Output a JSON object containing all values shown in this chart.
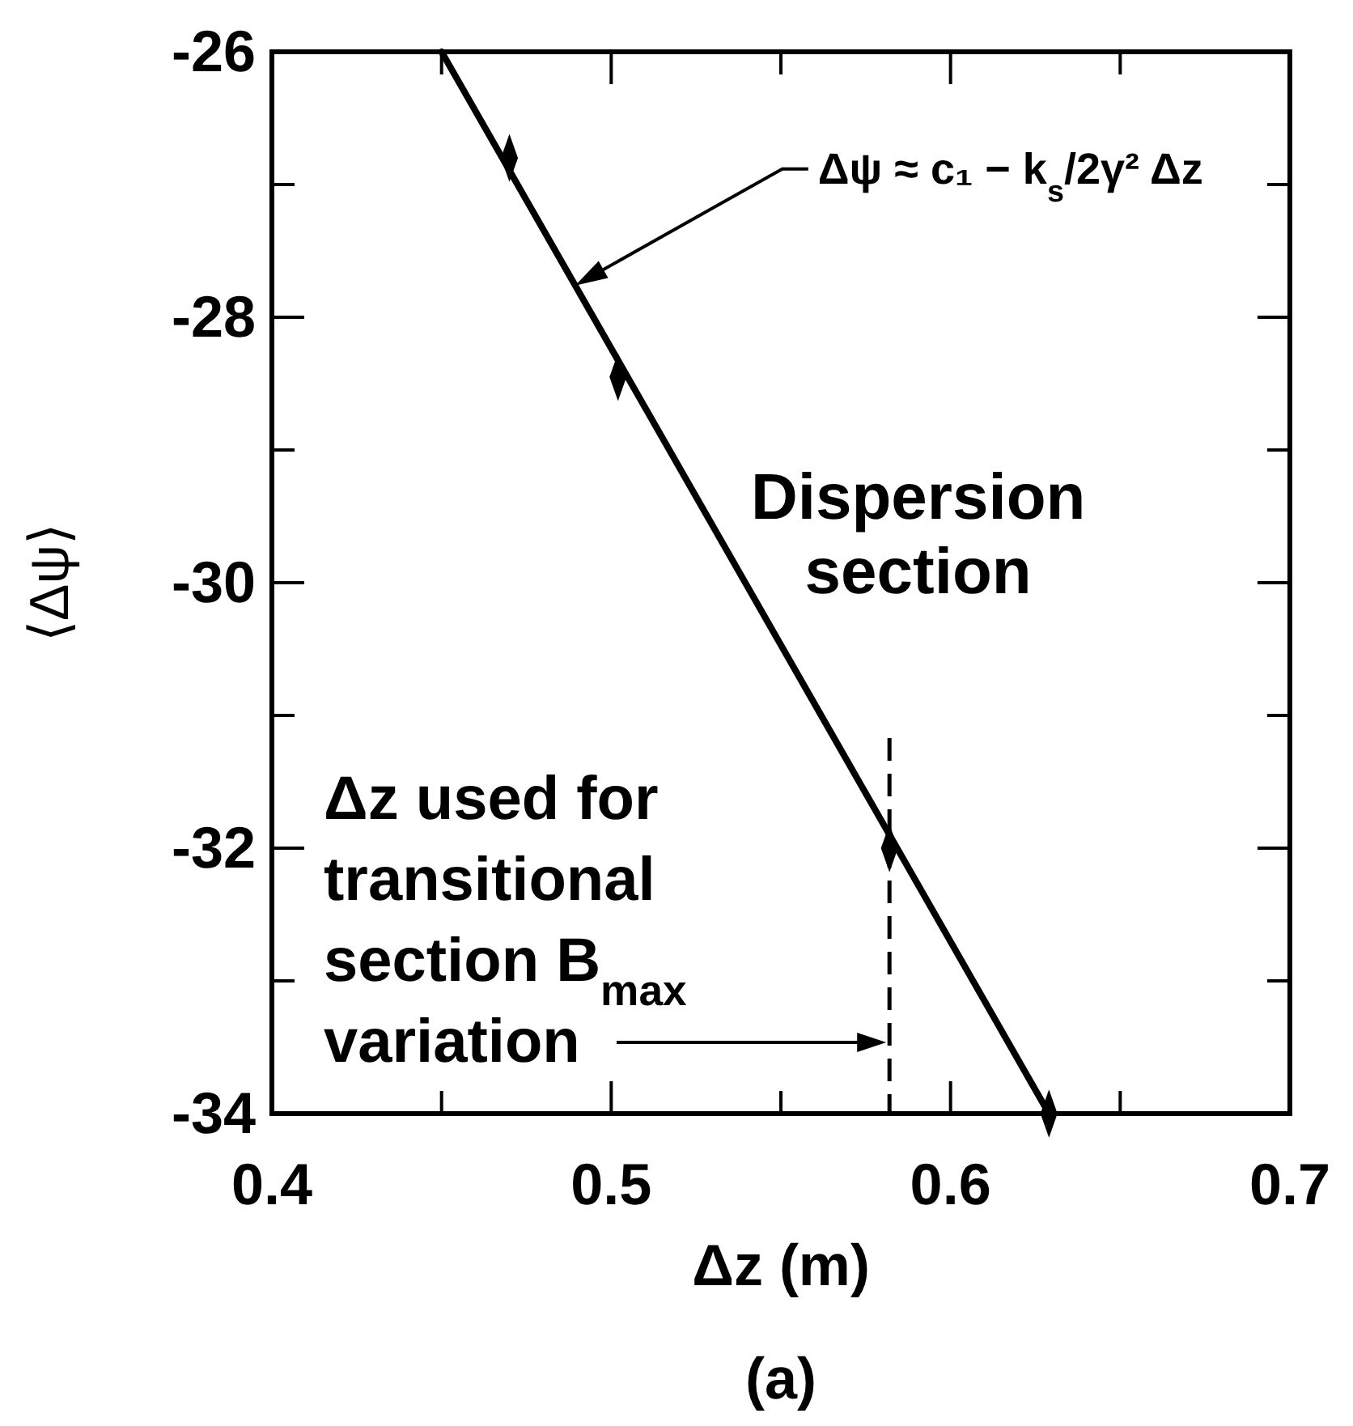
{
  "chart_data": {
    "type": "scatter",
    "xlabel": "Δz (m)",
    "ylabel": "⟨Δψ⟩",
    "xlim": [
      0.4,
      0.7
    ],
    "xticks": [
      0.4,
      {
        "value": 0.45,
        "label": null
      },
      0.5,
      {
        "value": 0.55,
        "label": null
      },
      0.6,
      {
        "value": 0.65,
        "label": null
      },
      0.7
    ],
    "ylim": [
      -34,
      -26
    ],
    "yticks": [
      -26,
      {
        "value": -27,
        "label": null
      },
      -28,
      {
        "value": -29,
        "label": null
      },
      -30,
      {
        "value": -31,
        "label": null
      },
      -32,
      {
        "value": -33,
        "label": null
      },
      -34
    ],
    "grid": false,
    "series": [
      {
        "type": "line",
        "color": "#000000",
        "line_style": "solid",
        "x": [
          0.45,
          0.629
        ],
        "values": [
          -26,
          -34
        ]
      },
      {
        "color": "#000000",
        "marker": "diamond",
        "x": [
          0.47,
          0.502,
          0.582,
          0.629
        ],
        "values": [
          -26.8,
          -28.45,
          -32,
          -34
        ]
      }
    ],
    "ref_lines": [
      {
        "axis": "x",
        "value": 0.582,
        "label": "Δz  used for transitional section B$_{max}$ variation",
        "line_style": "dashed",
        "color": "#000000"
      }
    ],
    "annotations": [
      "Δψ ≈ c₁ − k$_{s}$/2γ² Δz",
      "Dispersion section",
      "(a)"
    ]
  }
}
